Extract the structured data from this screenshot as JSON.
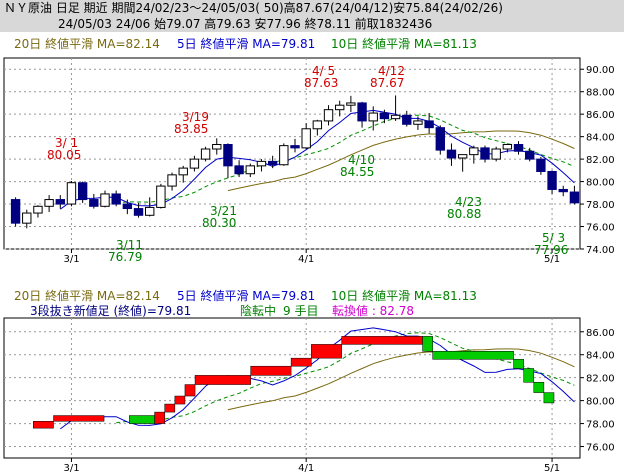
{
  "header": {
    "line1": "ＮＹ原油 日足 期近 期間24/02/23～24/05/03( 50)高87.67(24/04/12)安75.84(24/02/26)",
    "line2": "24/05/03 24/06 始79.07 高79.63 安77.96 終78.11 前取1832436"
  },
  "chart_data": [
    {
      "type": "candlestick",
      "legend": [
        {
          "label": "20日 終値平滑 MA=82.14",
          "color": "#7a6a10"
        },
        {
          "label": "5日 終値平滑 MA=79.81",
          "color": "#0000cc"
        },
        {
          "label": "10日 終値平滑 MA=81.13",
          "color": "#008000"
        }
      ],
      "ylim": [
        74,
        91
      ],
      "yticks": [
        "90.00",
        "88.00",
        "86.00",
        "84.00",
        "82.00",
        "80.00",
        "78.00",
        "76.00",
        "74.00"
      ],
      "xticks": [
        {
          "label": "3/1",
          "index": 5
        },
        {
          "label": "4/1",
          "index": 26
        },
        {
          "label": "5/1",
          "index": 48
        }
      ],
      "annotations": [
        {
          "date": "3/ 1",
          "value": "80.05",
          "color": "#d00000"
        },
        {
          "date": "3/19",
          "value": "83.85",
          "color": "#d00000"
        },
        {
          "date": "4/ 5",
          "value": "87.63",
          "color": "#d00000"
        },
        {
          "date": "4/12",
          "value": "87.67",
          "color": "#d00000"
        },
        {
          "date": "3/11",
          "value": "76.79",
          "color": "#008000"
        },
        {
          "date": "3/21",
          "value": "80.30",
          "color": "#008000"
        },
        {
          "date": "4/10",
          "value": "84.55",
          "color": "#008000"
        },
        {
          "date": "4/23",
          "value": "80.88",
          "color": "#008000"
        },
        {
          "date": "5/ 3",
          "value": "77.96",
          "color": "#008000"
        }
      ],
      "candles": [
        [
          78.4,
          78.6,
          76.0,
          76.3
        ],
        [
          76.3,
          77.5,
          75.84,
          77.2
        ],
        [
          77.2,
          77.9,
          76.8,
          77.8
        ],
        [
          77.8,
          78.8,
          77.3,
          78.4
        ],
        [
          78.4,
          78.8,
          77.6,
          78.0
        ],
        [
          78.0,
          80.05,
          77.8,
          79.9
        ],
        [
          79.9,
          80.0,
          78.1,
          78.4
        ],
        [
          78.4,
          78.9,
          77.6,
          77.8
        ],
        [
          77.8,
          79.2,
          77.7,
          78.9
        ],
        [
          78.9,
          79.2,
          77.8,
          78.0
        ],
        [
          78.0,
          78.4,
          77.1,
          77.6
        ],
        [
          77.6,
          78.1,
          76.79,
          77.0
        ],
        [
          77.0,
          78.6,
          76.9,
          77.7
        ],
        [
          77.7,
          79.8,
          77.6,
          79.6
        ],
        [
          79.6,
          80.8,
          79.2,
          80.6
        ],
        [
          80.6,
          81.4,
          79.9,
          81.2
        ],
        [
          81.2,
          82.3,
          80.9,
          82.0
        ],
        [
          82.0,
          83.1,
          81.8,
          82.9
        ],
        [
          82.9,
          83.85,
          82.4,
          83.3
        ],
        [
          83.3,
          83.4,
          80.3,
          81.4
        ],
        [
          81.4,
          81.9,
          80.4,
          80.7
        ],
        [
          80.7,
          81.6,
          80.4,
          81.4
        ],
        [
          81.4,
          82.0,
          80.9,
          81.8
        ],
        [
          81.8,
          82.3,
          81.2,
          81.5
        ],
        [
          81.5,
          83.4,
          81.4,
          83.2
        ],
        [
          83.2,
          83.8,
          82.6,
          83.0
        ],
        [
          83.0,
          85.2,
          82.9,
          84.7
        ],
        [
          84.7,
          85.5,
          84.1,
          85.4
        ],
        [
          85.4,
          86.8,
          85.0,
          86.4
        ],
        [
          86.4,
          87.2,
          85.8,
          86.8
        ],
        [
          86.8,
          87.63,
          86.2,
          87.0
        ],
        [
          87.0,
          87.1,
          84.8,
          85.4
        ],
        [
          85.4,
          86.7,
          84.55,
          86.1
        ],
        [
          86.1,
          86.4,
          85.2,
          85.6
        ],
        [
          85.6,
          87.67,
          85.4,
          85.9
        ],
        [
          85.9,
          86.3,
          84.9,
          85.1
        ],
        [
          85.1,
          85.8,
          84.6,
          85.4
        ],
        [
          85.4,
          86.1,
          84.3,
          84.8
        ],
        [
          84.8,
          85.0,
          82.4,
          82.8
        ],
        [
          82.8,
          83.4,
          81.4,
          82.1
        ],
        [
          82.1,
          82.4,
          80.88,
          82.4
        ],
        [
          82.4,
          83.2,
          81.6,
          83.0
        ],
        [
          83.0,
          83.2,
          81.7,
          82.0
        ],
        [
          82.0,
          83.1,
          81.8,
          82.9
        ],
        [
          82.9,
          83.4,
          82.6,
          83.3
        ],
        [
          83.3,
          83.6,
          82.4,
          82.7
        ],
        [
          82.7,
          83.0,
          81.8,
          82.0
        ],
        [
          82.0,
          82.2,
          80.6,
          80.9
        ],
        [
          80.9,
          81.0,
          78.9,
          79.3
        ],
        [
          79.3,
          79.63,
          78.7,
          79.1
        ],
        [
          79.07,
          79.63,
          77.96,
          78.11
        ]
      ]
    },
    {
      "type": "three-line-break",
      "legend": [
        {
          "label": "20日 終値平滑 MA=82.14",
          "color": "#7a6a10"
        },
        {
          "label": "5日 終値平滑 MA=79.81",
          "color": "#0000cc"
        },
        {
          "label": "10日 終値平滑 MA=81.13",
          "color": "#008000"
        }
      ],
      "info": {
        "title": "3段抜き新値足 (終値)=79.81",
        "trend": "陰転中",
        "count": "9 手目",
        "reversal_label": "転換値 : 82.78"
      },
      "ylim": [
        75,
        87.2
      ],
      "yticks": [
        "86.00",
        "84.00",
        "82.00",
        "80.00",
        "78.00",
        "76.00"
      ],
      "xticks": [
        {
          "label": "3/1",
          "index": 5
        },
        {
          "label": "4/1",
          "index": 26
        },
        {
          "label": "5/1",
          "index": 48
        }
      ],
      "bricks": [
        {
          "from": 77.6,
          "to": 78.2,
          "start": 5,
          "end": 9
        },
        {
          "from": 78.2,
          "to": 78.7,
          "start": 9,
          "end": 19
        },
        {
          "from": 78.7,
          "to": 78.0,
          "start": 24,
          "end": 29
        },
        {
          "from": 78.0,
          "to": 79.0,
          "start": 29,
          "end": 31
        },
        {
          "from": 79.0,
          "to": 79.7,
          "start": 31,
          "end": 33
        },
        {
          "from": 79.7,
          "to": 80.4,
          "start": 33,
          "end": 35
        },
        {
          "from": 80.4,
          "to": 81.4,
          "start": 35,
          "end": 37
        },
        {
          "from": 81.4,
          "to": 82.2,
          "start": 37,
          "end": 48
        },
        {
          "from": 82.2,
          "to": 83.0,
          "start": 48,
          "end": 56
        },
        {
          "from": 83.0,
          "to": 83.7,
          "start": 56,
          "end": 60
        },
        {
          "from": 83.7,
          "to": 84.9,
          "start": 60,
          "end": 66
        },
        {
          "from": 84.9,
          "to": 85.6,
          "start": 66,
          "end": 82
        },
        {
          "from": 85.6,
          "to": 84.3,
          "start": 82,
          "end": 84
        },
        {
          "from": 84.3,
          "to": 83.6,
          "start": 84,
          "end": 100
        },
        {
          "from": 83.6,
          "to": 82.8,
          "start": 100,
          "end": 102
        },
        {
          "from": 82.8,
          "to": 81.6,
          "start": 102,
          "end": 104
        },
        {
          "from": 81.6,
          "to": 80.7,
          "start": 104,
          "end": 106
        },
        {
          "from": 80.7,
          "to": 79.8,
          "start": 106,
          "end": 108
        }
      ]
    }
  ]
}
